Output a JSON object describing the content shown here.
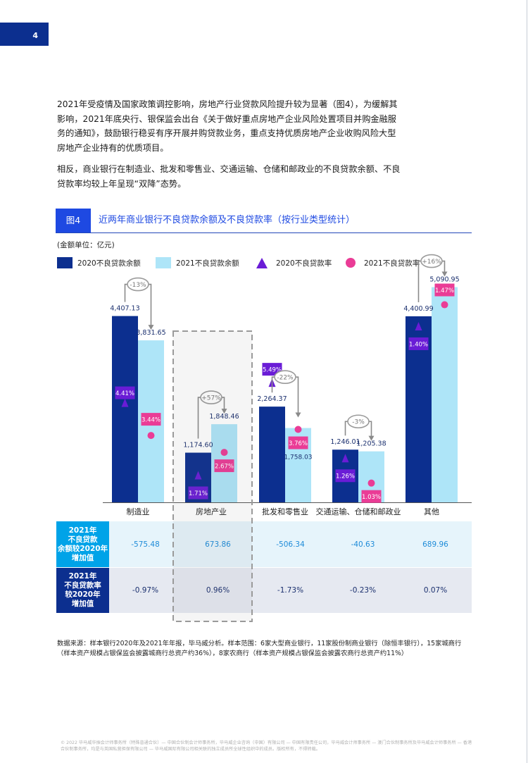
{
  "page": {
    "number": "4"
  },
  "paragraphs": [
    "2021年受疫情及国家政策调控影响，房地产行业贷款风险提升较为显著（图4），为缓解其影响，2021年底央行、银保监会出台《关于做好重点房地产企业风险处置项目并购金融服务的通知》，鼓励银行稳妥有序开展并购贷款业务，重点支持优质房地产企业收购风险大型房地产企业持有的优质项目。",
    "相反，商业银行在制造业、批发和零售业、交通运输、仓储和邮政业的不良贷款余额、不良贷款率均较上年呈现“双降”态势。"
  ],
  "figure": {
    "tag": "图4",
    "title": "近两年商业银行不良贷款余额及不良贷款率（按行业类型统计）",
    "unit": "(金额单位：亿元)",
    "legend": [
      "2020不良贷款余额",
      "2021不良贷款余额",
      "2020不良贷款率",
      "2021不良贷款率"
    ]
  },
  "colors": {
    "bar2020": "#0c2f8f",
    "bar2021": "#aee5f8",
    "rate2020": "#6a1cd6",
    "rate2021": "#ea3c96",
    "accent": "#1e49e2"
  },
  "chart_data": {
    "type": "bar",
    "categories": [
      "制造业",
      "房地产业",
      "批发和零售业",
      "交通运输、仓储和邮政业",
      "其他"
    ],
    "series": [
      {
        "name": "2020不良贷款余额",
        "values": [
          4407.13,
          1174.6,
          2264.37,
          1246.01,
          4400.99
        ],
        "labels": [
          "4,407.13",
          "1,174.60",
          "2,264.37",
          "1,246.01",
          "4,400.99"
        ]
      },
      {
        "name": "2021不良贷款余额",
        "values": [
          3831.65,
          1848.46,
          1758.03,
          1205.38,
          5090.95
        ],
        "labels": [
          "3,831.65",
          "1,848.46",
          "1,758.03",
          "1,205.38",
          "5,090.95"
        ]
      }
    ],
    "rates": [
      {
        "name": "2020不良贷款率",
        "values": [
          "4.41%",
          "1.71%",
          "5.49%",
          "1.26%",
          "1.40%"
        ]
      },
      {
        "name": "2021不良贷款率",
        "values": [
          "3.44%",
          "2.67%",
          "3.76%",
          "1.03%",
          "1.47%"
        ]
      }
    ],
    "changes": [
      "-13%",
      "+57%",
      "-22%",
      "-3%",
      "+16%"
    ],
    "ylim": [
      0,
      5500
    ]
  },
  "table": {
    "rows": [
      {
        "header": "2021年\n不良贷款\n余额较2020年\n增加值",
        "values": [
          "-575.48",
          "673.86",
          "-506.34",
          "-40.63",
          "689.96"
        ]
      },
      {
        "header": "2021年\n不良贷款率\n较2020年\n增加值",
        "values": [
          "-0.97%",
          "0.96%",
          "-1.73%",
          "-0.23%",
          "0.07%"
        ]
      }
    ]
  },
  "source": "数据来源：样本银行2020年及2021年年报，毕马威分析。样本范围：6家大型商业银行，11家股份制商业银行（除恒丰银行），15家城商行（样本资产规模占银保监会披露城商行总资产约36%），8家农商行（样本资产规模占银保监会披露农商行总资产约11%）",
  "footer": "© 2022 毕马威华振会计师事务所（特殊普通合伙）— 中国合伙制会计师事务所，毕马威企业咨询（中国）有限公司 — 中国有限责任公司，毕马威会计师事务所 — 澳门合伙制事务所及毕马威会计师事务所 — 香港合伙制事务所，均是与英国私营担保有限公司 — 毕马威国际有限公司相关联的独立成员所全球性组织中的成员。版权所有，不得转载。"
}
